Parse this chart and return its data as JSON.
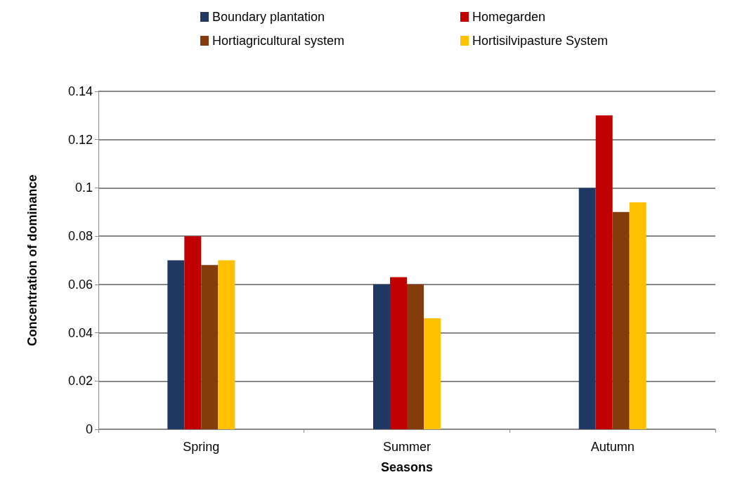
{
  "chart_data": {
    "type": "bar",
    "xlabel": "Seasons",
    "ylabel": "Concentration of dominance",
    "categories": [
      "Spring",
      "Summer",
      "Autumn"
    ],
    "series": [
      {
        "name": "Boundary plantation",
        "color": "#1f3864",
        "values": [
          0.07,
          0.06,
          0.1
        ]
      },
      {
        "name": "Homegarden",
        "color": "#c00000",
        "values": [
          0.08,
          0.063,
          0.13
        ]
      },
      {
        "name": "Hortiagricultural system",
        "color": "#843c0c",
        "values": [
          0.068,
          0.06,
          0.09
        ]
      },
      {
        "name": "Hortisilvipasture System",
        "color": "#ffc000",
        "values": [
          0.07,
          0.046,
          0.094
        ]
      }
    ],
    "ylim": [
      0,
      0.14
    ],
    "yticks": [
      0,
      0.02,
      0.04,
      0.06,
      0.08,
      0.1,
      0.12,
      0.14
    ],
    "grid": "y",
    "legend": "top"
  }
}
